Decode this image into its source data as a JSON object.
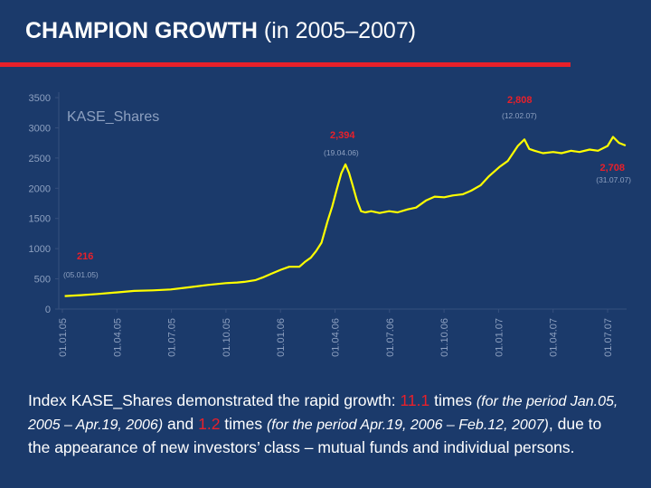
{
  "slide": {
    "title_bold": "CHAMPION GROWTH",
    "title_rest": " (in 2005–2007)"
  },
  "caption": {
    "part1": "Index KASE_Shares demonstrated the rapid growth: ",
    "hl1": "11.1",
    "part2": " times ",
    "it1": "(for the period Jan.05, 2005 – Apr.19, 2006)",
    "part3": " and ",
    "hl2": "1.2",
    "part4": " times ",
    "it2": "(for the period Apr.19, 2006 – Feb.12, 2007)",
    "part5": ", due to the appearance of new investors’ class  – mutual funds and individual persons."
  },
  "colors": {
    "background": "#1b3a6b",
    "accent_red": "#e8202a",
    "line": "#ffff00",
    "axis_text": "#8da0c0",
    "grid": "#36507e"
  },
  "chart_data": {
    "type": "line",
    "title": "",
    "legend_label": "KASE_Shares",
    "legend_placement": "top-left",
    "xlabel": "",
    "ylabel": "",
    "ylim": [
      0,
      3500
    ],
    "yticks": [
      "0",
      "500",
      "1000",
      "1500",
      "2000",
      "2500",
      "3000",
      "3500"
    ],
    "x_tick_labels": [
      "01.01.05",
      "01.04.05",
      "01.07.05",
      "01.10.05",
      "01.01.06",
      "01.04.06",
      "01.07.06",
      "01.10.06",
      "01.01.07",
      "01.04.07",
      "01.07.07"
    ],
    "grid": false,
    "series": [
      {
        "name": "KASE_Shares",
        "x": [
          "2005-01-05",
          "2005-02-01",
          "2005-03-01",
          "2005-04-01",
          "2005-05-01",
          "2005-06-01",
          "2005-07-01",
          "2005-08-01",
          "2005-09-01",
          "2005-10-01",
          "2005-10-20",
          "2005-11-01",
          "2005-11-20",
          "2005-12-01",
          "2005-12-15",
          "2006-01-01",
          "2006-01-15",
          "2006-02-01",
          "2006-02-10",
          "2006-02-20",
          "2006-03-01",
          "2006-03-10",
          "2006-03-20",
          "2006-03-28",
          "2006-04-05",
          "2006-04-12",
          "2006-04-19",
          "2006-04-25",
          "2006-05-01",
          "2006-05-08",
          "2006-05-15",
          "2006-05-22",
          "2006-06-01",
          "2006-06-15",
          "2006-07-01",
          "2006-07-15",
          "2006-08-01",
          "2006-08-15",
          "2006-09-01",
          "2006-09-15",
          "2006-10-01",
          "2006-10-15",
          "2006-11-01",
          "2006-11-15",
          "2006-12-01",
          "2006-12-15",
          "2007-01-01",
          "2007-01-15",
          "2007-02-01",
          "2007-02-12",
          "2007-02-20",
          "2007-03-01",
          "2007-03-15",
          "2007-04-01",
          "2007-04-15",
          "2007-05-01",
          "2007-05-15",
          "2007-06-01",
          "2007-06-15",
          "2007-07-01",
          "2007-07-10",
          "2007-07-20",
          "2007-07-31"
        ],
        "values": [
          216,
          230,
          250,
          275,
          300,
          310,
          325,
          360,
          400,
          430,
          440,
          450,
          480,
          520,
          580,
          650,
          700,
          700,
          780,
          850,
          960,
          1100,
          1450,
          1700,
          2000,
          2250,
          2394,
          2250,
          2050,
          1800,
          1620,
          1600,
          1620,
          1590,
          1620,
          1600,
          1650,
          1680,
          1800,
          1860,
          1850,
          1880,
          1900,
          1960,
          2050,
          2200,
          2350,
          2450,
          2700,
          2808,
          2650,
          2620,
          2580,
          2600,
          2580,
          2620,
          2600,
          2640,
          2620,
          2700,
          2850,
          2750,
          2708
        ]
      }
    ],
    "annotations": [
      {
        "value": "2,808",
        "date": "(12.02.07)"
      },
      {
        "value": "2,394",
        "date": "(19.04.06)"
      },
      {
        "value": "2,708",
        "date": "(31.07.07)"
      },
      {
        "value": "216",
        "date": "(05.01.05)"
      }
    ]
  }
}
